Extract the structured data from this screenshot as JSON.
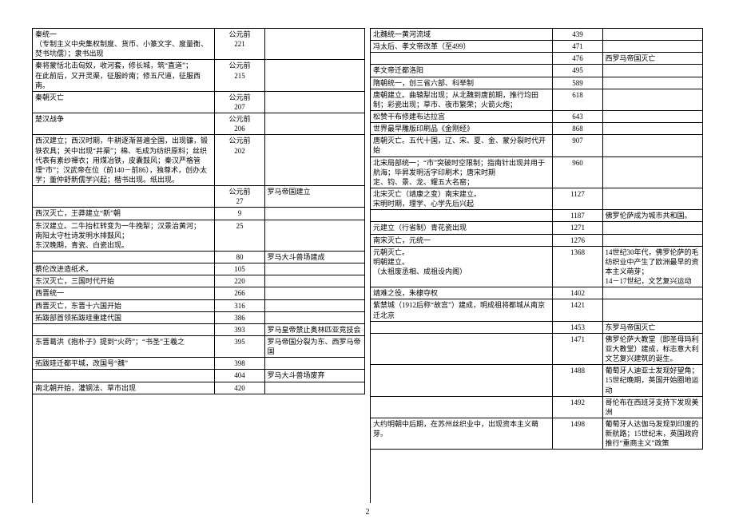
{
  "page_number": "2",
  "layout": {
    "columns": [
      "event",
      "year",
      "world"
    ],
    "col_widths_pct": [
      56,
      14,
      30
    ],
    "font_size_pt": 9,
    "border_color": "#000000",
    "background": "#ffffff"
  },
  "left": [
    {
      "event": "秦统一\n（专制主义中央集权制度、货币、小篆文字、度量衡、焚书坑儒）；隶书出现",
      "year": "公元前\n221",
      "world": ""
    },
    {
      "event": "秦将蒙恬北击匈奴，收河套，修长城，筑“直道”；\n在此前后，又开灵渠，征服岭南；修五尺道，征服西南。",
      "year": "公元前\n215",
      "world": ""
    },
    {
      "event": "秦朝灭亡",
      "year": "公元前\n207",
      "world": ""
    },
    {
      "event": "楚汉战争",
      "year": "公元前\n206",
      "world": ""
    },
    {
      "event": "西汉建立；西汉时期，牛耕逐渐普遍全国，出现镰，锻铁农具；关中出现“井渠”；棉、毛成为纺织原料；丝织代表有素纱襌衣；用煤冶铁，皮囊鼓风；秦汉严格管理“市”；汉武帝在位（前140－前86），独尊术，创办太学；董仲舒新儒学兴起；楷书出现。纸出现。",
      "year": "公元前\n202",
      "world": ""
    },
    {
      "event": "",
      "year": "公元前\n27",
      "world": "罗马帝国建立"
    },
    {
      "event": "西汉灭亡，王莽建立“新”朝",
      "year": "9",
      "world": ""
    },
    {
      "event": "东汉建立。二牛抬杠转变为一牛挽犁；汉景治黄河；\n南阳太守杜诗发明水排鼓风；\n东汉晚期，青瓷、白瓷出现。",
      "year": "25",
      "world": ""
    },
    {
      "event": "",
      "year": "80",
      "world": "罗马大斗兽场建成"
    },
    {
      "event": "蔡伦改进造纸术。",
      "year": "105",
      "world": ""
    },
    {
      "event": "东汉灭亡，三国时代开始",
      "year": "220",
      "world": ""
    },
    {
      "event": "西晋统一",
      "year": "266",
      "world": ""
    },
    {
      "event": "西晋灭亡，东晋十六国开始",
      "year": "316",
      "world": ""
    },
    {
      "event": "拓跋部首领拓跋珪重建代国",
      "year": "386",
      "world": ""
    },
    {
      "event": "",
      "year": "393",
      "world": "罗马皇帝禁止奥林匹亚竞技会"
    },
    {
      "event": "东晋葛洪《抱朴子》提到“火药”；“书圣”王羲之",
      "year": "395",
      "world": "罗马帝国分裂为东、西罗马帝国"
    },
    {
      "event": "拓跋珪迁都平城，改国号“魏”",
      "year": "398",
      "world": ""
    },
    {
      "event": "",
      "year": "404",
      "world": "罗马大斗兽场废弃"
    },
    {
      "event": "南北朝开始，灌钢法、草市出现",
      "year": "420",
      "world": ""
    }
  ],
  "right": [
    {
      "event": "北魏统一黄河流域",
      "year": "439",
      "world": ""
    },
    {
      "event": "冯太后、孝文帝改革（至499）",
      "year": "471",
      "world": ""
    },
    {
      "event": "",
      "year": "476",
      "world": "西罗马帝国灭亡"
    },
    {
      "event": "孝文帝迁都洛阳",
      "year": "495",
      "world": ""
    },
    {
      "event": "隋朝统一，创三省六部、科举制",
      "year": "589",
      "world": ""
    },
    {
      "event": "唐朝建立。曲辕犁出现；从北魏到唐前期，推行均田制；彩瓷出现；草市、夜市繁荣；火箭火炮；",
      "year": "618",
      "world": ""
    },
    {
      "event": "松赞干布修建布达拉宫",
      "year": "643",
      "world": ""
    },
    {
      "event": "世界最早雕版印刷品《金刚经》",
      "year": "868",
      "world": ""
    },
    {
      "event": "唐朝灭亡。五代十国，辽、宋、夏、金、蒙分裂时代开始",
      "year": "907",
      "world": ""
    },
    {
      "event": "北宋局部统一；“市”突破时空限制；指南针出现并用于航海；毕昇发明活字印刷术；唐宋时期\n定、钧、景、龙、耀五大名窑；",
      "year": "960",
      "world": ""
    },
    {
      "event": "北宋灭亡（靖康之变）南宋建立。\n宋明时期，理学、心学先后兴起",
      "year": "1127",
      "world": ""
    },
    {
      "event": "",
      "year": "1187",
      "world": "佛罗伦萨成为城市共和国。"
    },
    {
      "event": "元建立（行省制）青花瓷出现",
      "year": "1271",
      "world": ""
    },
    {
      "event": "南宋灭亡，元统一",
      "year": "1276",
      "world": ""
    },
    {
      "event": "元朝灭亡。\n明朝建立。\n（太祖废丞相、成祖设内阁）",
      "year": "1368",
      "world": "14世纪30年代，佛罗伦萨的毛纺织业中产生了欧洲最早的资本主义萌芽；\n14－17世纪，文艺复兴运动"
    },
    {
      "event": "靖难之役，朱棣夺权",
      "year": "1402",
      "world": ""
    },
    {
      "event": "紫禁城（1912后称“故宫”）建成，明成祖将都城从南京迁北京",
      "year": "1421",
      "world": ""
    },
    {
      "event": "",
      "year": "1453",
      "world": "东罗马帝国灭亡"
    },
    {
      "event": "",
      "year": "1471",
      "world": "佛罗伦萨大教堂（即圣母玛利亚大教堂）建成，标志意大利文艺复兴建筑的诞生。"
    },
    {
      "event": "",
      "year": "1488",
      "world": "葡萄牙人迪亚士发现好望角；\n15世纪晚期，英国开始圈地运动"
    },
    {
      "event": "",
      "year": "1492",
      "world": "哥伦布在西班牙支持下发现美洲"
    },
    {
      "event": "大约明朝中后期，在苏州丝织业中，出现资本主义萌芽。",
      "year": "1498",
      "world": "葡萄牙人达伽马发现到印度的新航路；15世纪末，英国政府推行“重商主义”政策"
    }
  ]
}
